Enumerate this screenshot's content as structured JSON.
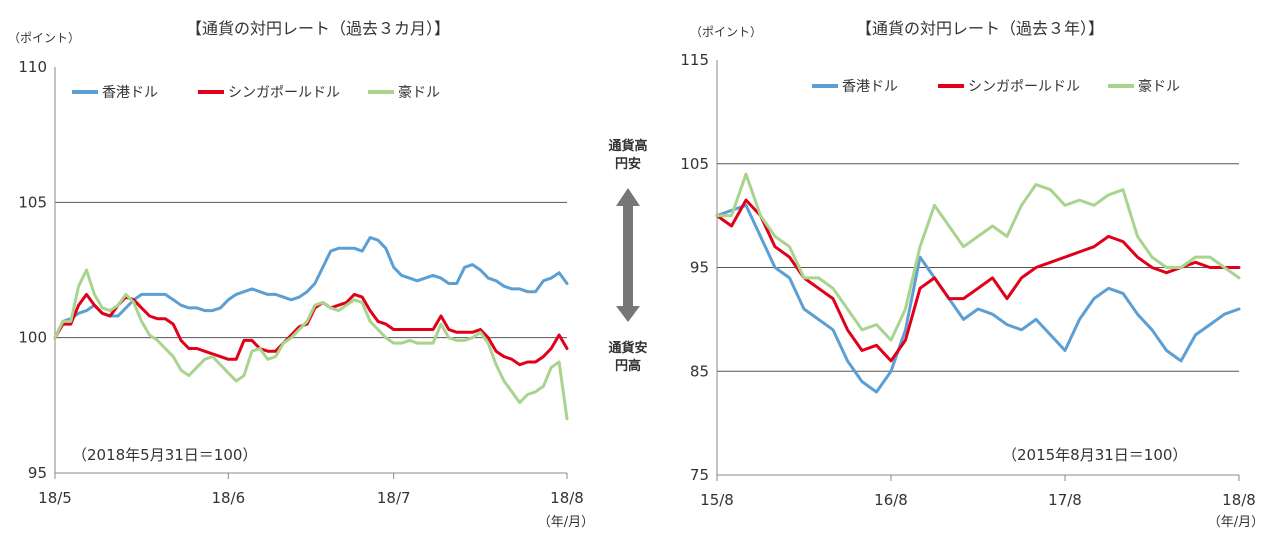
{
  "colors": {
    "hkd": "#5b9fd4",
    "sgd": "#e0001a",
    "aud": "#a8d48e",
    "grid": "#555555",
    "axis": "#888888",
    "arrow": "#777777"
  },
  "middle": {
    "up_line1": "通貨高",
    "up_line2": "円安",
    "down_line1": "通貨安",
    "down_line2": "円高"
  },
  "chart_data": [
    {
      "type": "line",
      "title": "【通貨の対円レート（過去３カ月）】",
      "ylabel": "（ポイント）",
      "ylim": [
        95,
        110
      ],
      "yticks": [
        "95",
        "100",
        "105",
        "110"
      ],
      "gridlines": [
        100,
        105
      ],
      "xlim": [
        0,
        65
      ],
      "xticks": [
        {
          "x": 0,
          "label": "18/5"
        },
        {
          "x": 22,
          "label": "18/6"
        },
        {
          "x": 43,
          "label": "18/7"
        },
        {
          "x": 65,
          "label": "18/8"
        }
      ],
      "xunit": "（年/月）",
      "note": "（2018年5月31日＝100）",
      "legend_position": "top-left",
      "series": [
        {
          "name": "香港ドル",
          "color_key": "hkd",
          "values": [
            100.0,
            100.6,
            100.7,
            100.9,
            101.0,
            101.2,
            100.9,
            100.8,
            100.8,
            101.1,
            101.4,
            101.6,
            101.6,
            101.6,
            101.6,
            101.4,
            101.2,
            101.1,
            101.1,
            101.0,
            101.0,
            101.1,
            101.4,
            101.6,
            101.7,
            101.8,
            101.7,
            101.6,
            101.6,
            101.5,
            101.4,
            101.5,
            101.7,
            102.0,
            102.6,
            103.2,
            103.3,
            103.3,
            103.3,
            103.2,
            103.7,
            103.6,
            103.3,
            102.6,
            102.3,
            102.2,
            102.1,
            102.2,
            102.3,
            102.2,
            102.0,
            102.0,
            102.6,
            102.7,
            102.5,
            102.2,
            102.1,
            101.9,
            101.8,
            101.8,
            101.7,
            101.7,
            102.1,
            102.2,
            102.4,
            102.0
          ]
        },
        {
          "name": "シンガポールドル",
          "color_key": "sgd",
          "values": [
            100.0,
            100.5,
            100.5,
            101.2,
            101.6,
            101.2,
            100.9,
            100.8,
            101.2,
            101.5,
            101.4,
            101.1,
            100.8,
            100.7,
            100.7,
            100.5,
            99.9,
            99.6,
            99.6,
            99.5,
            99.4,
            99.3,
            99.2,
            99.2,
            99.9,
            99.9,
            99.6,
            99.5,
            99.5,
            99.8,
            100.1,
            100.4,
            100.5,
            101.1,
            101.3,
            101.1,
            101.2,
            101.3,
            101.6,
            101.5,
            101.0,
            100.6,
            100.5,
            100.3,
            100.3,
            100.3,
            100.3,
            100.3,
            100.3,
            100.8,
            100.3,
            100.2,
            100.2,
            100.2,
            100.3,
            100.0,
            99.5,
            99.3,
            99.2,
            99.0,
            99.1,
            99.1,
            99.3,
            99.6,
            100.1,
            99.6
          ]
        },
        {
          "name": "豪ドル",
          "color_key": "aud",
          "values": [
            100.0,
            100.6,
            100.6,
            101.9,
            102.5,
            101.6,
            101.1,
            101.0,
            101.2,
            101.6,
            101.3,
            100.6,
            100.1,
            99.9,
            99.6,
            99.3,
            98.8,
            98.6,
            98.9,
            99.2,
            99.3,
            99.0,
            98.7,
            98.4,
            98.6,
            99.5,
            99.6,
            99.2,
            99.3,
            99.8,
            100.0,
            100.3,
            100.6,
            101.2,
            101.3,
            101.1,
            101.0,
            101.2,
            101.4,
            101.3,
            100.6,
            100.3,
            100.0,
            99.8,
            99.8,
            99.9,
            99.8,
            99.8,
            99.8,
            100.5,
            100.0,
            99.9,
            99.9,
            100.0,
            100.2,
            99.8,
            99.0,
            98.4,
            98.0,
            97.6,
            97.9,
            98.0,
            98.2,
            98.9,
            99.1,
            97.0
          ]
        }
      ]
    },
    {
      "type": "line",
      "title": "【通貨の対円レート（過去３年）】",
      "ylabel": "（ポイント）",
      "ylim": [
        75,
        115
      ],
      "yticks": [
        "75",
        "85",
        "95",
        "105",
        "115"
      ],
      "gridlines": [
        85,
        95,
        105
      ],
      "xlim": [
        0,
        36
      ],
      "xticks": [
        {
          "x": 0,
          "label": "15/8"
        },
        {
          "x": 12,
          "label": "16/8"
        },
        {
          "x": 24,
          "label": "17/8"
        },
        {
          "x": 36,
          "label": "18/8"
        }
      ],
      "xunit": "（年/月）",
      "note": "（2015年8月31日＝100）",
      "legend_position": "top",
      "series": [
        {
          "name": "香港ドル",
          "color_key": "hkd",
          "values": [
            100.0,
            100.5,
            101.0,
            98.0,
            95.0,
            94.0,
            91.0,
            90.0,
            89.0,
            86.0,
            84.0,
            83.0,
            85.0,
            89.0,
            96.0,
            94.0,
            92.0,
            90.0,
            91.0,
            90.5,
            89.5,
            89.0,
            90.0,
            88.5,
            87.0,
            90.0,
            92.0,
            93.0,
            92.5,
            90.5,
            89.0,
            87.0,
            86.0,
            88.5,
            89.5,
            90.5,
            91.0
          ]
        },
        {
          "name": "シンガポールドル",
          "color_key": "sgd",
          "values": [
            100.0,
            99.0,
            101.5,
            100.0,
            97.0,
            96.0,
            94.0,
            93.0,
            92.0,
            89.0,
            87.0,
            87.5,
            86.0,
            88.0,
            93.0,
            94.0,
            92.0,
            92.0,
            93.0,
            94.0,
            92.0,
            94.0,
            95.0,
            95.5,
            96.0,
            96.5,
            97.0,
            98.0,
            97.5,
            96.0,
            95.0,
            94.5,
            95.0,
            95.5,
            95.0,
            95.0,
            95.0
          ]
        },
        {
          "name": "豪ドル",
          "color_key": "aud",
          "values": [
            100.0,
            100.0,
            104.0,
            100.0,
            98.0,
            97.0,
            94.0,
            94.0,
            93.0,
            91.0,
            89.0,
            89.5,
            88.0,
            91.0,
            97.0,
            101.0,
            99.0,
            97.0,
            98.0,
            99.0,
            98.0,
            101.0,
            103.0,
            102.5,
            101.0,
            101.5,
            101.0,
            102.0,
            102.5,
            98.0,
            96.0,
            95.0,
            95.0,
            96.0,
            96.0,
            95.0,
            94.0
          ]
        }
      ]
    }
  ]
}
